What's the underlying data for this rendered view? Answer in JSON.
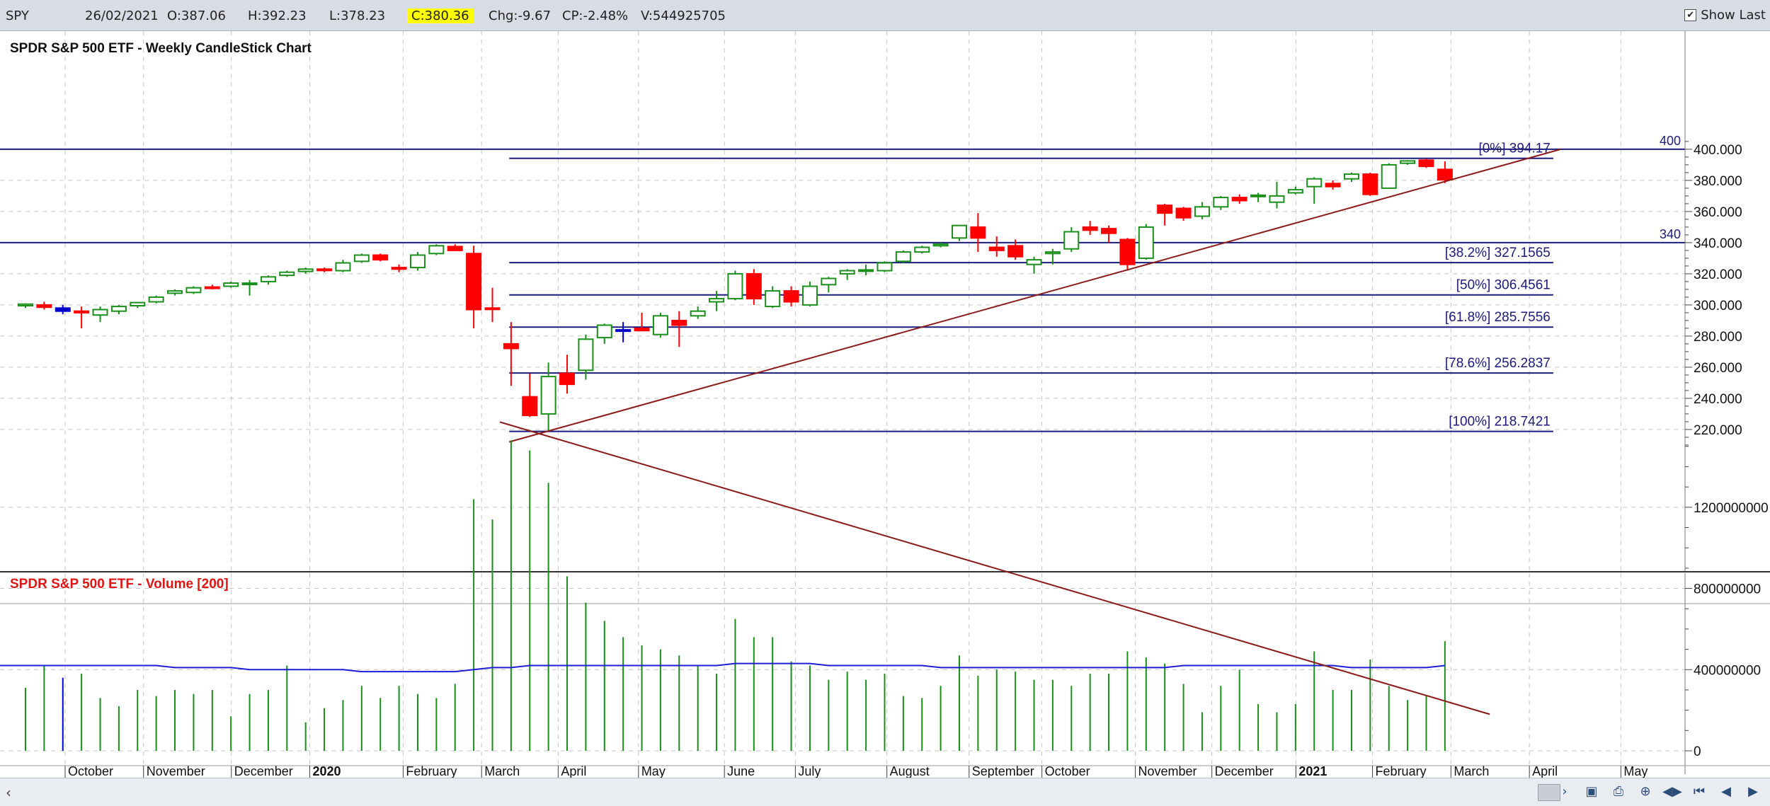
{
  "topbar": {
    "symbol": "SPY",
    "date": "26/02/2021",
    "open": "O:387.06",
    "high": "H:392.23",
    "low": "L:378.23",
    "close": "C:380.36",
    "change": "Chg:-9.67",
    "change_pct": "CP:-2.48%",
    "volume": "V:544925705",
    "show_last_label": "Show Last",
    "show_last_checked": "✔"
  },
  "bottombar": {
    "scroll_left_icon": "chevron-left-icon",
    "buttons": [
      "scroll-right-icon",
      "save-icon",
      "print-icon",
      "zoom-icon",
      "fit-icon",
      "first-icon",
      "prev-icon",
      "next-icon"
    ],
    "glyphs": [
      "›",
      "▣",
      "⎙",
      "⊕",
      "◀▶",
      "⏮",
      "◀",
      "▶"
    ]
  },
  "chart_data": [
    {
      "type": "candlestick",
      "title": "SPDR S&P 500 ETF - Weekly CandleStick Chart",
      "ylim": [
        207,
        406
      ],
      "yticks": [
        220,
        240,
        260,
        280,
        300,
        320,
        340,
        360,
        380,
        400
      ],
      "ytick_labels": [
        "220.000",
        "240.000",
        "260.000",
        "280.000",
        "300.000",
        "320.000",
        "340.000",
        "360.000",
        "380.000",
        "400.000"
      ],
      "grid": true,
      "colors": {
        "up": "#1a8f1a",
        "down": "#ff0000",
        "neutral": "#0000cc",
        "line": "#1b1b7a",
        "trend": "#8b1a1a"
      },
      "candles": [
        {
          "o": 299.5,
          "h": 301,
          "l": 298,
          "c": 300.5
        },
        {
          "o": 300,
          "h": 302,
          "l": 297,
          "c": 298.5
        },
        {
          "o": 298,
          "h": 300,
          "l": 294,
          "c": 296
        },
        {
          "o": 296,
          "h": 299,
          "l": 285,
          "c": 295
        },
        {
          "o": 293.5,
          "h": 299,
          "l": 289,
          "c": 297
        },
        {
          "o": 296,
          "h": 300,
          "l": 294,
          "c": 299
        },
        {
          "o": 299.5,
          "h": 302,
          "l": 298,
          "c": 301.5
        },
        {
          "o": 302,
          "h": 306,
          "l": 301,
          "c": 305
        },
        {
          "o": 307.5,
          "h": 310,
          "l": 306,
          "c": 309
        },
        {
          "o": 308,
          "h": 312,
          "l": 307,
          "c": 311
        },
        {
          "o": 311.5,
          "h": 313,
          "l": 310,
          "c": 311
        },
        {
          "o": 312,
          "h": 315,
          "l": 311,
          "c": 314
        },
        {
          "o": 313.5,
          "h": 316,
          "l": 306,
          "c": 314
        },
        {
          "o": 315,
          "h": 319,
          "l": 313,
          "c": 318
        },
        {
          "o": 319,
          "h": 322,
          "l": 318,
          "c": 321
        },
        {
          "o": 321.5,
          "h": 324,
          "l": 320,
          "c": 323
        },
        {
          "o": 323,
          "h": 324,
          "l": 321,
          "c": 322.5
        },
        {
          "o": 322,
          "h": 329,
          "l": 321,
          "c": 327
        },
        {
          "o": 328,
          "h": 333,
          "l": 327,
          "c": 332
        },
        {
          "o": 332,
          "h": 333,
          "l": 328,
          "c": 329
        },
        {
          "o": 324,
          "h": 326,
          "l": 321,
          "c": 323
        },
        {
          "o": 324,
          "h": 334,
          "l": 322,
          "c": 332
        },
        {
          "o": 333,
          "h": 339,
          "l": 332,
          "c": 338
        },
        {
          "o": 337.5,
          "h": 339,
          "l": 335,
          "c": 335
        },
        {
          "o": 333,
          "h": 338,
          "l": 285,
          "c": 297
        },
        {
          "o": 298,
          "h": 311,
          "l": 289,
          "c": 297.5
        },
        {
          "o": 275,
          "h": 289,
          "l": 248,
          "c": 272
        },
        {
          "o": 241,
          "h": 256,
          "l": 228,
          "c": 229
        },
        {
          "o": 230,
          "h": 263,
          "l": 219,
          "c": 254
        },
        {
          "o": 256,
          "h": 268,
          "l": 243,
          "c": 249
        },
        {
          "o": 258,
          "h": 281,
          "l": 252,
          "c": 278
        },
        {
          "o": 279,
          "h": 288,
          "l": 275,
          "c": 287
        },
        {
          "o": 284,
          "h": 289,
          "l": 276,
          "c": 284
        },
        {
          "o": 285,
          "h": 295,
          "l": 283,
          "c": 283.5
        },
        {
          "o": 281,
          "h": 295,
          "l": 279,
          "c": 293
        },
        {
          "o": 290,
          "h": 296,
          "l": 273,
          "c": 287
        },
        {
          "o": 293,
          "h": 299,
          "l": 291,
          "c": 296
        },
        {
          "o": 302,
          "h": 309,
          "l": 296,
          "c": 304
        },
        {
          "o": 304,
          "h": 322,
          "l": 303,
          "c": 320
        },
        {
          "o": 320,
          "h": 323,
          "l": 300,
          "c": 304
        },
        {
          "o": 299,
          "h": 312,
          "l": 298,
          "c": 309
        },
        {
          "o": 309,
          "h": 312,
          "l": 299,
          "c": 302
        },
        {
          "o": 300,
          "h": 315,
          "l": 299,
          "c": 312
        },
        {
          "o": 313,
          "h": 318,
          "l": 308,
          "c": 317
        },
        {
          "o": 320,
          "h": 323,
          "l": 316,
          "c": 322
        },
        {
          "o": 322,
          "h": 326,
          "l": 319,
          "c": 322.5
        },
        {
          "o": 322,
          "h": 328,
          "l": 321,
          "c": 327
        },
        {
          "o": 328,
          "h": 335,
          "l": 327,
          "c": 334
        },
        {
          "o": 334,
          "h": 338,
          "l": 333,
          "c": 337
        },
        {
          "o": 338,
          "h": 340,
          "l": 337,
          "c": 339
        },
        {
          "o": 343,
          "h": 351,
          "l": 341,
          "c": 351
        },
        {
          "o": 350,
          "h": 359,
          "l": 334,
          "c": 343
        },
        {
          "o": 337,
          "h": 344,
          "l": 331,
          "c": 335
        },
        {
          "o": 338,
          "h": 342,
          "l": 329,
          "c": 331
        },
        {
          "o": 326,
          "h": 331,
          "l": 320,
          "c": 329
        },
        {
          "o": 333,
          "h": 336,
          "l": 326,
          "c": 334
        },
        {
          "o": 336,
          "h": 350,
          "l": 334,
          "c": 347
        },
        {
          "o": 350,
          "h": 354,
          "l": 345,
          "c": 348
        },
        {
          "o": 349,
          "h": 351,
          "l": 340,
          "c": 346
        },
        {
          "o": 342,
          "h": 343,
          "l": 322,
          "c": 326
        },
        {
          "o": 330,
          "h": 352,
          "l": 329,
          "c": 350
        },
        {
          "o": 364,
          "h": 365,
          "l": 351,
          "c": 359
        },
        {
          "o": 362,
          "h": 363,
          "l": 354,
          "c": 356
        },
        {
          "o": 357,
          "h": 366,
          "l": 355,
          "c": 363
        },
        {
          "o": 363,
          "h": 370,
          "l": 361,
          "c": 369
        },
        {
          "o": 369,
          "h": 371,
          "l": 365,
          "c": 367
        },
        {
          "o": 370,
          "h": 372,
          "l": 366,
          "c": 370.5
        },
        {
          "o": 366,
          "h": 379,
          "l": 362,
          "c": 370
        },
        {
          "o": 372,
          "h": 376,
          "l": 371,
          "c": 374
        },
        {
          "o": 376,
          "h": 382,
          "l": 365,
          "c": 381
        },
        {
          "o": 378,
          "h": 380,
          "l": 374,
          "c": 376
        },
        {
          "o": 381,
          "h": 385,
          "l": 379,
          "c": 384
        },
        {
          "o": 384,
          "h": 385,
          "l": 370,
          "c": 371
        },
        {
          "o": 375,
          "h": 391,
          "l": 375,
          "c": 390
        },
        {
          "o": 391,
          "h": 393,
          "l": 390,
          "c": 392.5
        },
        {
          "o": 393,
          "h": 394,
          "l": 388,
          "c": 389
        },
        {
          "o": 387.06,
          "h": 392.23,
          "l": 378.23,
          "c": 380.36
        }
      ],
      "xlabels": [
        {
          "i": 2.5,
          "label": "October",
          "bold": false
        },
        {
          "i": 6.7,
          "label": "November",
          "bold": false
        },
        {
          "i": 11.4,
          "label": "December",
          "bold": false
        },
        {
          "i": 15.6,
          "label": "2020",
          "bold": true
        },
        {
          "i": 20.6,
          "label": "February",
          "bold": false
        },
        {
          "i": 24.8,
          "label": "March",
          "bold": false
        },
        {
          "i": 28.9,
          "label": "April",
          "bold": false
        },
        {
          "i": 33.2,
          "label": "May",
          "bold": false
        },
        {
          "i": 37.8,
          "label": "June",
          "bold": false
        },
        {
          "i": 41.6,
          "label": "July",
          "bold": false
        },
        {
          "i": 46.5,
          "label": "August",
          "bold": false
        },
        {
          "i": 50.9,
          "label": "September",
          "bold": false
        },
        {
          "i": 54.8,
          "label": "October",
          "bold": false
        },
        {
          "i": 59.8,
          "label": "November",
          "bold": false
        },
        {
          "i": 63.9,
          "label": "December",
          "bold": false
        },
        {
          "i": 68.4,
          "label": "2021",
          "bold": true
        },
        {
          "i": 72.5,
          "label": "February",
          "bold": false
        },
        {
          "i": 76.7,
          "label": "March",
          "bold": false
        },
        {
          "i": 80.9,
          "label": "April",
          "bold": false
        },
        {
          "i": 85.8,
          "label": "May",
          "bold": false
        }
      ],
      "hlines": [
        {
          "value": 400,
          "label": "400"
        },
        {
          "value": 340,
          "label": "340"
        }
      ],
      "fibonacci": [
        {
          "value": 394.17,
          "label": "[0%] 394.17"
        },
        {
          "value": 327.1565,
          "label": "[38.2%] 327.1565"
        },
        {
          "value": 306.4561,
          "label": "[50%] 306.4561"
        },
        {
          "value": 285.7556,
          "label": "[61.8%] 285.7556"
        },
        {
          "value": 256.2837,
          "label": "[78.6%] 256.2837"
        },
        {
          "value": 218.7421,
          "label": "[100%] 218.7421"
        }
      ],
      "fib_start_index": 25.9,
      "fib_end_index": 81.8,
      "trendline": {
        "start": {
          "i": 25.9,
          "value": 212
        },
        "end": {
          "i": 82.2,
          "value": 400
        }
      }
    },
    {
      "type": "bar",
      "title": "SPDR S&P 500 ETF - Volume [200]",
      "ylim": [
        -70000000,
        1600000000
      ],
      "yticks": [
        0,
        400000000,
        800000000,
        1200000000
      ],
      "ytick_labels": [
        "0",
        "400000000",
        "800000000",
        "1200000000"
      ],
      "grid": true,
      "colors": {
        "bar": "#1a8f1a",
        "highlight": "#0000cc",
        "ma": "#1e1ed8",
        "trend": "#8b1a1a"
      },
      "values": [
        310,
        420,
        360,
        380,
        260,
        220,
        300,
        270,
        300,
        280,
        300,
        170,
        280,
        300,
        420,
        140,
        210,
        250,
        320,
        260,
        320,
        280,
        260,
        330,
        1240,
        1140,
        1530,
        1480,
        1320,
        860,
        730,
        640,
        560,
        520,
        500,
        470,
        420,
        380,
        650,
        560,
        560,
        440,
        420,
        350,
        390,
        350,
        380,
        270,
        260,
        320,
        470,
        370,
        400,
        390,
        350,
        350,
        320,
        380,
        380,
        490,
        460,
        430,
        330,
        190,
        320,
        400,
        230,
        190,
        230,
        490,
        300,
        300,
        450,
        320,
        250,
        270,
        540
      ],
      "values_unit_millions": true,
      "highlight_indices": [
        2
      ],
      "ma": [
        420,
        420,
        420,
        420,
        420,
        420,
        420,
        420,
        410,
        410,
        410,
        410,
        400,
        400,
        400,
        400,
        400,
        400,
        390,
        390,
        390,
        390,
        390,
        390,
        400,
        410,
        410,
        420,
        420,
        420,
        420,
        420,
        420,
        420,
        420,
        420,
        420,
        420,
        430,
        430,
        430,
        430,
        430,
        420,
        420,
        420,
        420,
        420,
        420,
        410,
        410,
        410,
        410,
        410,
        410,
        410,
        410,
        410,
        410,
        410,
        410,
        410,
        420,
        420,
        420,
        420,
        420,
        420,
        420,
        420,
        420,
        410,
        410,
        410,
        410,
        410,
        420
      ],
      "trendline": {
        "start": {
          "i": 25.4,
          "value": 1620
        },
        "end": {
          "i": 78.4,
          "value": 180
        }
      }
    }
  ]
}
